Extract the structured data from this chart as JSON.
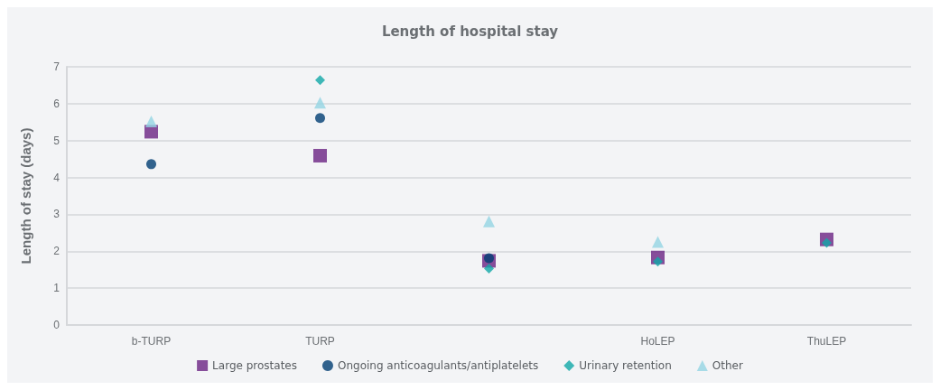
{
  "chart_data": {
    "type": "scatter",
    "title": "Length of hospital stay",
    "ylabel": "Length of stay (days)",
    "categories": [
      "b-TURP",
      "TURP",
      null,
      "HoLEP",
      "ThuLEP"
    ],
    "ylim": [
      0,
      7
    ],
    "yticks": [
      0,
      1,
      2,
      3,
      4,
      5,
      6,
      7
    ],
    "grid": "y",
    "legend": "bottom",
    "series": [
      {
        "name": "Large prostates",
        "color": "#6a2383",
        "marker": "square",
        "values": [
          5.24,
          4.59,
          1.74,
          1.83,
          2.32
        ]
      },
      {
        "name": "Ongoing anticoagulants/antiplatelets",
        "color": "#003d73",
        "marker": "circle",
        "values": [
          4.36,
          5.61,
          1.81,
          null,
          null
        ]
      },
      {
        "name": "Urinary retention",
        "color": "#10a8a8",
        "marker": "diamond",
        "values": [
          null,
          6.64,
          1.53,
          1.72,
          2.23
        ]
      },
      {
        "name": "Other",
        "color": "#94d4e4",
        "marker": "triangle",
        "values": [
          5.52,
          6.03,
          2.81,
          2.25,
          null
        ]
      }
    ]
  }
}
